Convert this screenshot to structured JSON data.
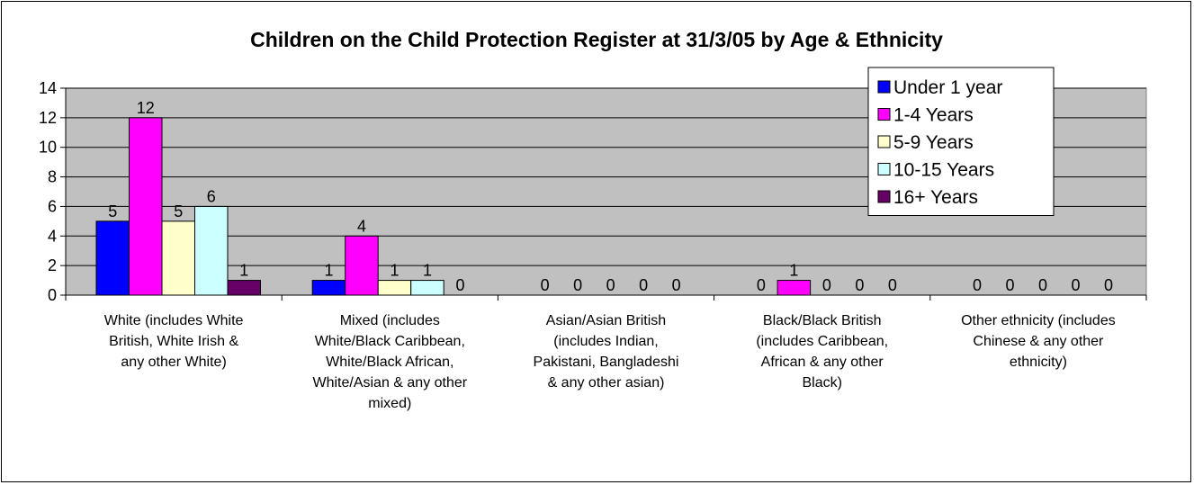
{
  "chart_data": {
    "type": "bar",
    "title": "Children on the Child Protection Register at 31/3/05 by Age & Ethnicity",
    "xlabel": "",
    "ylabel": "",
    "ylim": [
      0,
      14
    ],
    "yticks": [
      "0",
      "2",
      "4",
      "6",
      "8",
      "10",
      "12",
      "14"
    ],
    "grid": true,
    "legend_position": "top-right",
    "categories": [
      [
        "White (includes White",
        "British, White Irish &",
        "any other White)"
      ],
      [
        "Mixed (includes",
        "White/Black Caribbean,",
        "White/Black African,",
        "White/Asian & any other",
        "mixed)"
      ],
      [
        "Asian/Asian British",
        "(includes Indian,",
        "Pakistani, Bangladeshi",
        "& any other asian)"
      ],
      [
        "Black/Black British",
        "(includes Caribbean,",
        "African & any other",
        "Black)"
      ],
      [
        "Other ethnicity (includes",
        "Chinese & any other",
        "ethnicity)"
      ]
    ],
    "series": [
      {
        "name": "Under 1 year",
        "color": "#0000ff",
        "values": [
          5,
          1,
          0,
          0,
          0
        ]
      },
      {
        "name": "1-4 Years",
        "color": "#ff00ff",
        "values": [
          12,
          4,
          0,
          1,
          0
        ]
      },
      {
        "name": "5-9 Years",
        "color": "#ffffcc",
        "values": [
          5,
          1,
          0,
          0,
          0
        ]
      },
      {
        "name": "10-15 Years",
        "color": "#ccffff",
        "values": [
          6,
          1,
          0,
          0,
          0
        ]
      },
      {
        "name": "16+ Years",
        "color": "#660066",
        "values": [
          1,
          0,
          0,
          0,
          0
        ]
      }
    ],
    "plot_background": "#c0c0c0"
  }
}
